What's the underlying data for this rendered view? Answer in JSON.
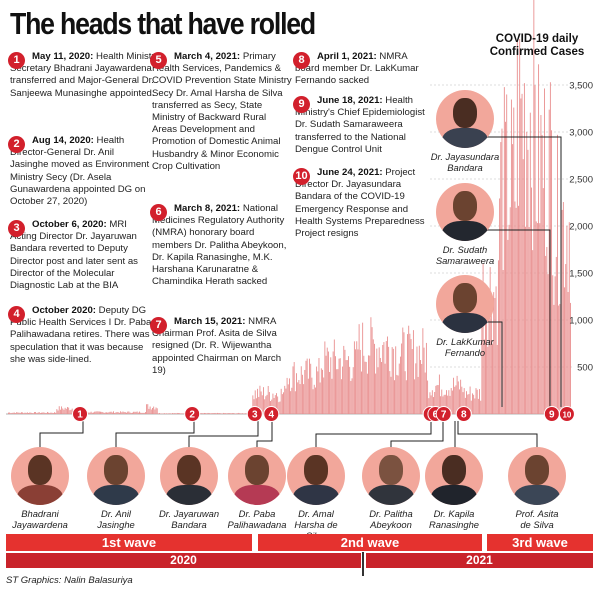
{
  "title": "The heads that have rolled",
  "colors": {
    "accent": "#d2202c",
    "bars": "#e98f8f",
    "band": "#e5322f",
    "year_band": "#c9232a"
  },
  "events": [
    {
      "num": "1",
      "date": "May 11, 2020:",
      "text": "Health Ministry Secretary Bhadrani Jayawardena transferred and Major-General Dr. Sanjeewa Munasinghe appointed."
    },
    {
      "num": "2",
      "date": "Aug 14, 2020:",
      "text": "Health Director-General Dr. Anil Jasinghe moved as Environment Ministry Secy (Dr. Asela Gunawardena appointed DG on October 27, 2020)"
    },
    {
      "num": "3",
      "date": "October 6, 2020:",
      "text": "MRI Acting Director Dr. Jayaruwan Bandara reverted to Deputy Director post and later sent as Director of the Molecular Diagnostic Lab at the BIA"
    },
    {
      "num": "4",
      "date": "October 2020:",
      "text": "Deputy DG Public Health Services I Dr. Paba Palihawadana retires. There was speculation that it was because she was side-lined."
    },
    {
      "num": "5",
      "date": "March 4, 2021:",
      "text": "Primary Health Services, Pandemics & COVID Prevention State Ministry Secy Dr. Amal Harsha de Silva transferred as Secy, State Ministry of Backward Rural Areas Development and Promotion of Domestic Animal Husbandry & Minor Economic Crop Cultivation"
    },
    {
      "num": "6",
      "date": "March 8, 2021:",
      "text": "National Medicines Regulatory Authority (NMRA) honorary board members Dr. Palitha Abeykoon, Dr. Kapila Ranasinghe, M.K. Harshana Karunaratne & Chamindika Herath sacked"
    },
    {
      "num": "7",
      "date": "March 15, 2021:",
      "text": "NMRA Chairman Prof. Asita de Silva resigned (Dr. R. Wijewantha appointed Chairman on March 19)"
    },
    {
      "num": "8",
      "date": "April 1, 2021:",
      "text": "NMRA board member Dr. LakKumar Fernando sacked"
    },
    {
      "num": "9",
      "date": "June 18, 2021:",
      "text": "Health Ministry's Chief Epidemiologist Dr. Sudath Samaraweera transferred to the National Dengue Control Unit"
    },
    {
      "num": "10",
      "date": "June 24, 2021:",
      "text": "Project Director Dr. Jayasundara Bandara of the COVID-19 Emergency Response and Health Systems Preparedness Project resigns"
    }
  ],
  "people_bottom": [
    {
      "name": "Bhadrani Jayawardena",
      "line1": "Bhadrani",
      "line2": "Jayawardena",
      "line3": ""
    },
    {
      "name": "Dr. Anil Jasinghe",
      "line1": "Dr. Anil",
      "line2": "Jasinghe",
      "line3": ""
    },
    {
      "name": "Dr. Jayaruwan Bandara",
      "line1": "Dr. Jayaruwan",
      "line2": "Bandara",
      "line3": ""
    },
    {
      "name": "Dr. Paba Palihawadana",
      "line1": "Dr. Paba",
      "line2": "Palihawadana",
      "line3": ""
    },
    {
      "name": "Dr. Amal Harsha de Silva",
      "line1": "Dr. Amal",
      "line2": "Harsha de",
      "line3": "Silva"
    },
    {
      "name": "Dr. Palitha Abeykoon",
      "line1": "Dr. Palitha",
      "line2": "Abeykoon",
      "line3": ""
    },
    {
      "name": "Dr. Kapila Ranasinghe",
      "line1": "Dr. Kapila",
      "line2": "Ranasinghe",
      "line3": ""
    },
    {
      "name": "Prof. Asita de Silva",
      "line1": "Prof. Asita",
      "line2": "de Silva",
      "line3": ""
    }
  ],
  "people_right": [
    {
      "line1": "Dr. Jayasundara",
      "line2": "Bandara"
    },
    {
      "line1": "Dr. Sudath",
      "line2": "Samaraweera"
    },
    {
      "line1": "Dr. LakKumar",
      "line2": "Fernando"
    }
  ],
  "bands": {
    "wave1": "1st wave",
    "wave2": "2nd wave",
    "wave3": "3rd wave",
    "year2020": "2020",
    "year2021": "2021"
  },
  "footer": "ST Graphics: Nalin Balasuriya",
  "chart_data": {
    "type": "bar",
    "title": "COVID-19 daily Confirmed Cases",
    "x_range": [
      "2020-03-11",
      "2021-06-30"
    ],
    "ylim": [
      0,
      3500
    ],
    "yticks": [
      500,
      1000,
      1500,
      2000,
      2500,
      3000,
      3500
    ],
    "ytick_labels": [
      "500",
      "1,000",
      "1,500",
      "2,000",
      "2,500",
      "3,000",
      "3,500"
    ],
    "series": [
      {
        "values_note_free": true,
        "segments": [
          {
            "from": "2020-03-11",
            "to": "2020-04-20",
            "level": 15
          },
          {
            "from": "2020-04-21",
            "to": "2020-05-05",
            "level": 60
          },
          {
            "from": "2020-05-06",
            "to": "2020-07-05",
            "level": 20
          },
          {
            "from": "2020-07-06",
            "to": "2020-07-15",
            "level": 80
          },
          {
            "from": "2020-07-16",
            "to": "2020-10-03",
            "level": 8
          },
          {
            "from": "2020-10-04",
            "to": "2020-10-31",
            "level": 220
          },
          {
            "from": "2020-11-01",
            "to": "2020-11-30",
            "level": 420
          },
          {
            "from": "2020-12-01",
            "to": "2020-12-31",
            "level": 560
          },
          {
            "from": "2021-01-01",
            "to": "2021-01-31",
            "level": 720
          },
          {
            "from": "2021-02-01",
            "to": "2021-02-28",
            "level": 650
          },
          {
            "from": "2021-03-01",
            "to": "2021-03-31",
            "level": 300
          },
          {
            "from": "2021-04-01",
            "to": "2021-04-15",
            "level": 220
          },
          {
            "from": "2021-04-16",
            "to": "2021-04-30",
            "level": 1300
          },
          {
            "from": "2021-05-01",
            "to": "2021-05-15",
            "level": 2450
          },
          {
            "from": "2021-05-16",
            "to": "2021-05-31",
            "level": 3150
          },
          {
            "from": "2021-06-01",
            "to": "2021-06-15",
            "level": 2650
          },
          {
            "from": "2021-06-16",
            "to": "2021-06-30",
            "level": 2050
          }
        ]
      }
    ],
    "markers": [
      {
        "num": "1",
        "date": "2020-05-11"
      },
      {
        "num": "2",
        "date": "2020-08-14"
      },
      {
        "num": "3",
        "date": "2020-10-06"
      },
      {
        "num": "4",
        "date": "2020-10-20"
      },
      {
        "num": "5",
        "date": "2021-03-04"
      },
      {
        "num": "6",
        "date": "2021-03-08"
      },
      {
        "num": "7",
        "date": "2021-03-15"
      },
      {
        "num": "8",
        "date": "2021-04-01"
      },
      {
        "num": "9",
        "date": "2021-06-18"
      },
      {
        "num": "10",
        "date": "2021-06-24"
      }
    ]
  }
}
